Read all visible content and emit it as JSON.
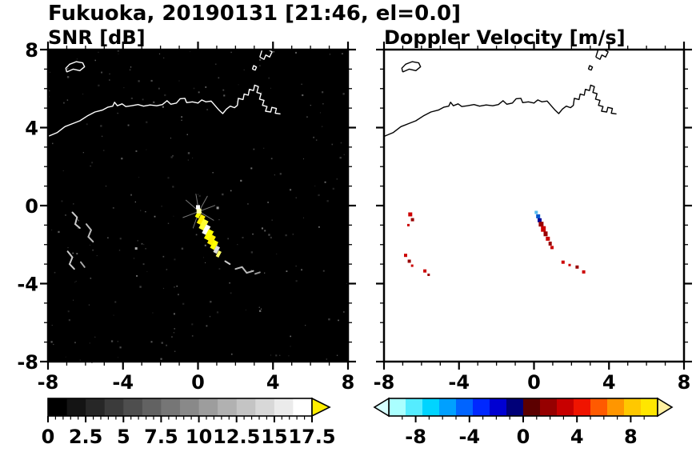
{
  "title": "Fukuoka, 20190131 [21:46, el=0.0]",
  "coastline": [
    [
      [
        -8,
        3.55
      ],
      [
        -7.5,
        3.75
      ],
      [
        -7.1,
        4.05
      ],
      [
        -6.7,
        4.2
      ],
      [
        -6.3,
        4.35
      ],
      [
        -5.9,
        4.6
      ],
      [
        -5.5,
        4.8
      ],
      [
        -5.1,
        4.9
      ],
      [
        -4.8,
        5.05
      ],
      [
        -4.55,
        5.1
      ],
      [
        -4.45,
        5.3
      ],
      [
        -4.3,
        5.12
      ],
      [
        -4.05,
        5.22
      ],
      [
        -3.85,
        5.08
      ],
      [
        -3.55,
        5.12
      ],
      [
        -3.2,
        5.18
      ],
      [
        -2.9,
        5.1
      ],
      [
        -2.55,
        5.16
      ],
      [
        -2.2,
        5.12
      ],
      [
        -1.9,
        5.18
      ],
      [
        -1.65,
        5.38
      ],
      [
        -1.45,
        5.2
      ],
      [
        -1.15,
        5.26
      ],
      [
        -0.95,
        5.48
      ],
      [
        -0.7,
        5.5
      ],
      [
        -0.6,
        5.28
      ],
      [
        -0.3,
        5.32
      ],
      [
        0.0,
        5.26
      ],
      [
        0.2,
        5.42
      ],
      [
        0.42,
        5.32
      ],
      [
        0.7,
        5.36
      ],
      [
        0.9,
        5.14
      ],
      [
        1.1,
        4.92
      ],
      [
        1.32,
        4.72
      ],
      [
        1.52,
        4.95
      ],
      [
        1.72,
        5.1
      ],
      [
        1.95,
        5.02
      ],
      [
        2.1,
        5.14
      ],
      [
        2.15,
        5.5
      ],
      [
        2.4,
        5.44
      ],
      [
        2.46,
        5.72
      ],
      [
        2.68,
        5.66
      ],
      [
        2.74,
        5.96
      ],
      [
        2.96,
        5.9
      ],
      [
        3.02,
        6.18
      ],
      [
        3.22,
        6.1
      ],
      [
        3.14,
        5.8
      ],
      [
        3.36,
        5.74
      ],
      [
        3.28,
        5.46
      ],
      [
        3.52,
        5.4
      ],
      [
        3.44,
        5.14
      ],
      [
        3.68,
        5.08
      ],
      [
        3.6,
        4.84
      ],
      [
        3.88,
        4.8
      ],
      [
        3.94,
        5.04
      ],
      [
        4.18,
        4.98
      ],
      [
        4.12,
        4.74
      ],
      [
        4.4,
        4.7
      ]
    ],
    [
      [
        -7.0,
        6.85
      ],
      [
        -6.65,
        7.0
      ],
      [
        -6.3,
        6.92
      ],
      [
        -6.05,
        7.12
      ],
      [
        -6.15,
        7.32
      ],
      [
        -6.5,
        7.38
      ],
      [
        -6.85,
        7.25
      ],
      [
        -7.05,
        7.05
      ],
      [
        -7.0,
        6.85
      ]
    ],
    [
      [
        3.3,
        7.62
      ],
      [
        3.52,
        7.5
      ],
      [
        3.62,
        7.72
      ],
      [
        3.82,
        7.62
      ],
      [
        3.95,
        7.88
      ],
      [
        3.75,
        8.0
      ],
      [
        3.42,
        8.0
      ],
      [
        3.3,
        7.62
      ]
    ],
    [
      [
        2.9,
        7.0
      ],
      [
        3.05,
        6.95
      ],
      [
        3.12,
        7.1
      ],
      [
        2.97,
        7.18
      ],
      [
        2.9,
        7.0
      ]
    ]
  ],
  "chart_data": [
    {
      "type": "heatmap",
      "title": "SNR [dB]",
      "xlim": [
        -8,
        8
      ],
      "ylim": [
        -8,
        8
      ],
      "xticks": [
        -8,
        -4,
        0,
        4,
        8
      ],
      "yticks": [
        8,
        4,
        0,
        -4,
        -8
      ],
      "background": "#000000",
      "coast_color": "#ffffff",
      "colorbar": {
        "min": 0,
        "max": 17.5,
        "colormap": "grayscale",
        "over_color": "#ffee00",
        "tick_values": [
          0,
          2.5,
          5,
          7.5,
          10,
          12.5,
          15,
          17.5
        ],
        "tick_labels": [
          "0",
          "2.5",
          "5",
          "7.5",
          "10",
          "12.5",
          "15",
          "17.5"
        ]
      },
      "speckle": {
        "seed": 11,
        "count": 260,
        "colors": [
          "#242424",
          "#303030",
          "#3c3c3c",
          "#4a4a4a",
          "#5a5a5a",
          "#6e6e6e"
        ]
      },
      "strokes": [
        {
          "c": "#777777",
          "w": 1,
          "pts": [
            [
              0.05,
              -0.3
            ],
            [
              0.9,
              0.01
            ]
          ]
        },
        {
          "c": "#777777",
          "w": 1,
          "pts": [
            [
              0.05,
              -0.3
            ],
            [
              0.5,
              0.48
            ]
          ]
        },
        {
          "c": "#777777",
          "w": 1,
          "pts": [
            [
              0.05,
              -0.3
            ],
            [
              -0.11,
              0.59
            ]
          ]
        },
        {
          "c": "#777777",
          "w": 1,
          "pts": [
            [
              0.05,
              -0.3
            ],
            [
              -0.64,
              0.28
            ]
          ]
        },
        {
          "c": "#777777",
          "w": 1,
          "pts": [
            [
              0.05,
              -0.3
            ],
            [
              -0.8,
              -0.61
            ]
          ]
        },
        {
          "c": "#777777",
          "w": 1,
          "pts": [
            [
              0.05,
              -0.3
            ],
            [
              -0.26,
              -1.15
            ]
          ]
        },
        {
          "c": "#777777",
          "w": 1,
          "pts": [
            [
              0.05,
              -0.3
            ],
            [
              0.36,
              -1.15
            ]
          ]
        },
        {
          "c": "#777777",
          "w": 1,
          "pts": [
            [
              0.05,
              -0.3
            ],
            [
              0.83,
              -0.75
            ]
          ]
        },
        {
          "c": "#cccccc",
          "w": 2,
          "pts": [
            [
              -6.7,
              -0.35
            ],
            [
              -6.45,
              -0.6
            ],
            [
              -6.55,
              -0.95
            ],
            [
              -6.3,
              -1.15
            ]
          ]
        },
        {
          "c": "#bbbbbb",
          "w": 2,
          "pts": [
            [
              -5.95,
              -0.95
            ],
            [
              -5.7,
              -1.25
            ],
            [
              -5.85,
              -1.6
            ],
            [
              -5.6,
              -1.85
            ]
          ]
        },
        {
          "c": "#cccccc",
          "w": 2,
          "pts": [
            [
              -6.95,
              -2.35
            ],
            [
              -6.7,
              -2.65
            ],
            [
              -6.85,
              -3.0
            ],
            [
              -6.6,
              -3.25
            ]
          ]
        },
        {
          "c": "#aaaaaa",
          "w": 2,
          "pts": [
            [
              -6.25,
              -2.9
            ],
            [
              -6.05,
              -3.15
            ]
          ]
        },
        {
          "c": "#cccccc",
          "w": 2,
          "pts": [
            [
              1.45,
              -2.85
            ],
            [
              1.7,
              -3.0
            ]
          ]
        },
        {
          "c": "#bbbbbb",
          "w": 2,
          "pts": [
            [
              2.0,
              -3.25
            ],
            [
              2.35,
              -3.15
            ],
            [
              2.6,
              -3.45
            ],
            [
              2.95,
              -3.35
            ]
          ]
        },
        {
          "c": "#999999",
          "w": 2,
          "pts": [
            [
              3.05,
              -3.5
            ],
            [
              3.3,
              -3.42
            ]
          ]
        }
      ],
      "dots": [
        [
          0.02,
          -0.45,
          9,
          5,
          "#ffff00",
          -62
        ],
        [
          0.16,
          -0.72,
          12,
          6,
          "#ffee00",
          -62
        ],
        [
          0.3,
          -0.98,
          13,
          7,
          "#ffff33",
          -62
        ],
        [
          0.44,
          -1.24,
          12,
          6,
          "#ffffff",
          -62
        ],
        [
          0.58,
          -1.5,
          13,
          7,
          "#ffff00",
          -62
        ],
        [
          0.72,
          -1.76,
          12,
          6,
          "#ffee00",
          -62
        ],
        [
          0.86,
          -2.02,
          11,
          6,
          "#ffff00",
          -62
        ],
        [
          0.99,
          -2.26,
          9,
          5,
          "#dddddd",
          -62
        ],
        [
          1.1,
          -2.48,
          8,
          4,
          "#ffff66",
          -62
        ],
        [
          0.05,
          -0.28,
          6,
          6,
          "#ffffaa",
          0
        ],
        [
          0.0,
          -0.08,
          5,
          5,
          "#ffffff",
          0
        ],
        [
          1.05,
          -0.12,
          3,
          3,
          "#999999",
          0
        ],
        [
          -3.3,
          -2.2,
          3,
          3,
          "#aaaaaa",
          0
        ]
      ]
    },
    {
      "type": "heatmap",
      "title": "Doppler Velocity [m/s]",
      "xlim": [
        -8,
        8
      ],
      "ylim": [
        -8,
        8
      ],
      "xticks": [
        -8,
        -4,
        0,
        4,
        8
      ],
      "yticks": [
        8,
        4,
        0,
        -4,
        -8
      ],
      "background": "#ffffff",
      "coast_color": "#000000",
      "colorbar": {
        "min": -10,
        "max": 10,
        "under_color": "#d6ffff",
        "over_color": "#fff0a0",
        "colors": [
          "#aaffff",
          "#55ecff",
          "#00d4ff",
          "#00a0ff",
          "#0064ff",
          "#0028ff",
          "#0000d2",
          "#000078",
          "#5c0000",
          "#960000",
          "#c80000",
          "#f01400",
          "#ff5a00",
          "#ff9600",
          "#ffc800",
          "#ffe600"
        ],
        "tick_values": [
          -8,
          -4,
          0,
          4,
          8
        ],
        "tick_labels": [
          "-8",
          "-4",
          "0",
          "4",
          "8"
        ]
      },
      "strokes": [],
      "dots": [
        [
          -6.6,
          -0.45,
          5,
          5,
          "#cc0000",
          0
        ],
        [
          -6.48,
          -0.72,
          4,
          4,
          "#990000",
          0
        ],
        [
          -6.7,
          -1.0,
          3,
          3,
          "#cc0000",
          0
        ],
        [
          -6.85,
          -2.55,
          4,
          4,
          "#cc0000",
          0
        ],
        [
          -6.65,
          -2.85,
          4,
          4,
          "#990000",
          0
        ],
        [
          -6.5,
          -3.08,
          3,
          3,
          "#cc0000",
          0
        ],
        [
          -5.82,
          -3.35,
          4,
          4,
          "#cc0000",
          0
        ],
        [
          -5.62,
          -3.55,
          3,
          3,
          "#990000",
          0
        ],
        [
          0.12,
          -0.35,
          4,
          4,
          "#55bbee",
          0
        ],
        [
          0.22,
          -0.55,
          5,
          5,
          "#0055cc",
          0
        ],
        [
          0.3,
          -0.75,
          5,
          5,
          "#000099",
          0
        ],
        [
          0.38,
          -0.95,
          6,
          6,
          "#990000",
          0
        ],
        [
          0.5,
          -1.2,
          6,
          7,
          "#cc0000",
          0
        ],
        [
          0.62,
          -1.45,
          5,
          6,
          "#990000",
          0
        ],
        [
          0.74,
          -1.7,
          5,
          5,
          "#cc0000",
          0
        ],
        [
          0.86,
          -1.95,
          4,
          5,
          "#990000",
          0
        ],
        [
          0.96,
          -2.15,
          4,
          4,
          "#cc0000",
          0
        ],
        [
          1.55,
          -2.9,
          4,
          4,
          "#cc0000",
          0
        ],
        [
          1.9,
          -3.05,
          3,
          3,
          "#cc0000",
          0
        ],
        [
          2.3,
          -3.15,
          4,
          4,
          "#990000",
          0
        ],
        [
          2.65,
          -3.4,
          4,
          4,
          "#cc0000",
          0
        ]
      ]
    }
  ]
}
